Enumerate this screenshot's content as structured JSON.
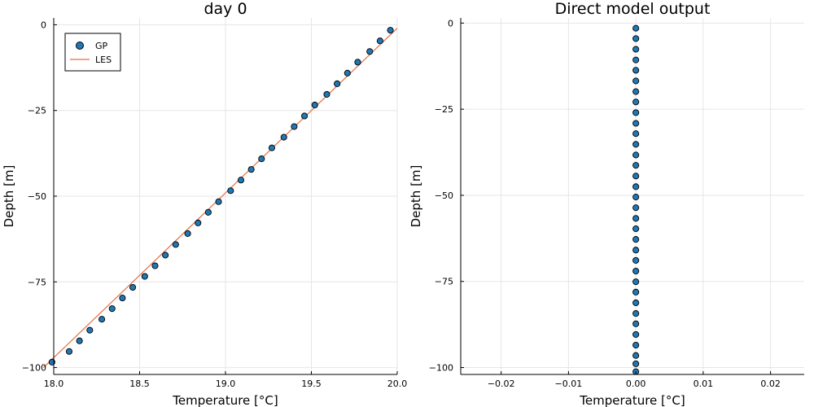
{
  "chart_data": [
    {
      "type": "scatter",
      "title": "day 0",
      "xlabel": "Temperature [°C]",
      "ylabel": "Depth [m]",
      "xlim": [
        18.0,
        20.0
      ],
      "ylim": [
        -102.0,
        2.0
      ],
      "xticks": [
        18.0,
        18.5,
        19.0,
        19.5,
        20.0
      ],
      "xtick_labels": [
        "18.0",
        "18.5",
        "19.0",
        "19.5",
        "20.0"
      ],
      "yticks": [
        0,
        -25,
        -50,
        -75,
        -100
      ],
      "ytick_labels": [
        "0",
        "−25",
        "−50",
        "−75",
        "−100"
      ],
      "grid": true,
      "legend": "top-left",
      "series": [
        {
          "name": "GP",
          "kind": "scatter",
          "color": "#1f77b4",
          "x": [
            17.99,
            18.09,
            18.15,
            18.21,
            18.28,
            18.34,
            18.4,
            18.46,
            18.53,
            18.59,
            18.65,
            18.71,
            18.78,
            18.84,
            18.9,
            18.96,
            19.03,
            19.09,
            19.15,
            19.21,
            19.27,
            19.34,
            19.4,
            19.46,
            19.52,
            19.59,
            19.65,
            19.71,
            19.77,
            19.84,
            19.9,
            19.96
          ],
          "y": [
            -98.4,
            -95.3,
            -92.2,
            -89.1,
            -85.9,
            -82.8,
            -79.7,
            -76.6,
            -73.4,
            -70.3,
            -67.2,
            -64.1,
            -60.9,
            -57.8,
            -54.7,
            -51.6,
            -48.4,
            -45.3,
            -42.2,
            -39.1,
            -35.9,
            -32.8,
            -29.7,
            -26.6,
            -23.4,
            -20.3,
            -17.2,
            -14.1,
            -10.9,
            -7.8,
            -4.7,
            -1.6
          ]
        },
        {
          "name": "LES",
          "kind": "line",
          "color": "#e26f46",
          "x": [
            17.94,
            20.0
          ],
          "y": [
            -100.0,
            -1.0
          ]
        }
      ]
    },
    {
      "type": "scatter",
      "title": "Direct model output",
      "xlabel": "Temperature [°C]",
      "ylabel": "Depth [m]",
      "xlim": [
        -0.026,
        0.025
      ],
      "ylim": [
        -102.0,
        1.5
      ],
      "xticks": [
        -0.02,
        -0.01,
        0.0,
        0.01,
        0.02
      ],
      "xtick_labels": [
        "−0.02",
        "−0.01",
        "0.00",
        "0.01",
        "0.02"
      ],
      "yticks": [
        0,
        -25,
        -50,
        -75,
        -100
      ],
      "ytick_labels": [
        "0",
        "−25",
        "−50",
        "−75",
        "−100"
      ],
      "grid": true,
      "legend": "none",
      "series": [
        {
          "kind": "scatter",
          "color": "#1f77b4",
          "x": [
            0,
            0,
            0,
            0,
            0,
            0,
            0,
            0,
            0,
            0,
            0,
            0,
            0,
            0,
            0,
            0,
            0,
            0,
            0,
            0,
            0,
            0,
            0,
            0,
            0,
            0,
            0,
            0,
            0,
            0,
            0,
            0,
            0,
            0
          ],
          "y": [
            -1.5,
            -4.5,
            -7.6,
            -10.7,
            -13.7,
            -16.8,
            -19.9,
            -22.9,
            -26.0,
            -29.1,
            -32.1,
            -35.2,
            -38.3,
            -41.3,
            -44.4,
            -47.5,
            -50.5,
            -53.6,
            -56.7,
            -59.7,
            -62.8,
            -65.9,
            -68.9,
            -72.0,
            -75.1,
            -78.1,
            -81.2,
            -84.3,
            -87.3,
            -90.4,
            -93.5,
            -96.5,
            -98.9,
            -101.2
          ]
        }
      ]
    }
  ]
}
